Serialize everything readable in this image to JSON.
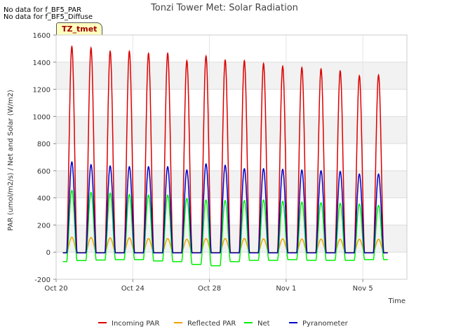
{
  "notes": [
    "No data for f_BF5_PAR",
    "No data for f_BF5_Diffuse"
  ],
  "badge": "TZ_tmet",
  "chart_data": {
    "type": "line",
    "title": "Tonzi Tower Met: Solar Radiation",
    "xlabel": "Time",
    "ylabel": "PAR (umol/m2/s) / Net and Solar (W/m2)",
    "ylim": [
      -200,
      1600
    ],
    "yticks": [
      -200,
      0,
      200,
      400,
      600,
      800,
      1000,
      1200,
      1400,
      1600
    ],
    "xlim_days": [
      0,
      18.3
    ],
    "xticks": [
      {
        "day": 0,
        "label": "Oct 20"
      },
      {
        "day": 4,
        "label": "Oct 24"
      },
      {
        "day": 8,
        "label": "Oct 28"
      },
      {
        "day": 12,
        "label": "Nov 1"
      },
      {
        "day": 16,
        "label": "Nov 5"
      }
    ],
    "grid": true,
    "legend": "bottom",
    "day_centers": [
      0.82,
      1.82,
      2.82,
      3.82,
      4.82,
      5.82,
      6.82,
      7.82,
      8.82,
      9.82,
      10.82,
      11.82,
      12.82,
      13.82,
      14.82,
      15.82,
      16.82
    ],
    "series": [
      {
        "name": "Incoming PAR",
        "color": "#dd0000",
        "night": -5,
        "peaks": [
          1515,
          1505,
          1480,
          1480,
          1465,
          1465,
          1410,
          1445,
          1415,
          1410,
          1390,
          1370,
          1360,
          1350,
          1335,
          1300,
          1305
        ]
      },
      {
        "name": "Reflected PAR",
        "color": "#f0a000",
        "night": -2,
        "peaks": [
          110,
          108,
          105,
          105,
          100,
          100,
          95,
          100,
          100,
          100,
          98,
          98,
          97,
          96,
          95,
          95,
          95
        ]
      },
      {
        "name": "Net",
        "color": "#00ee00",
        "night": -65,
        "peaks": [
          455,
          440,
          435,
          425,
          420,
          420,
          395,
          385,
          380,
          380,
          385,
          375,
          370,
          365,
          360,
          355,
          345
        ],
        "nights": [
          -70,
          -62,
          -58,
          -55,
          -55,
          -65,
          -70,
          -90,
          -100,
          -70,
          -60,
          -60,
          -55,
          -60,
          -60,
          -60,
          -55,
          -55
        ]
      },
      {
        "name": "Pyranometer",
        "color": "#0000cc",
        "night": -5,
        "peaks": [
          665,
          645,
          635,
          630,
          630,
          630,
          605,
          650,
          640,
          615,
          615,
          610,
          605,
          600,
          595,
          575,
          575
        ]
      }
    ]
  }
}
